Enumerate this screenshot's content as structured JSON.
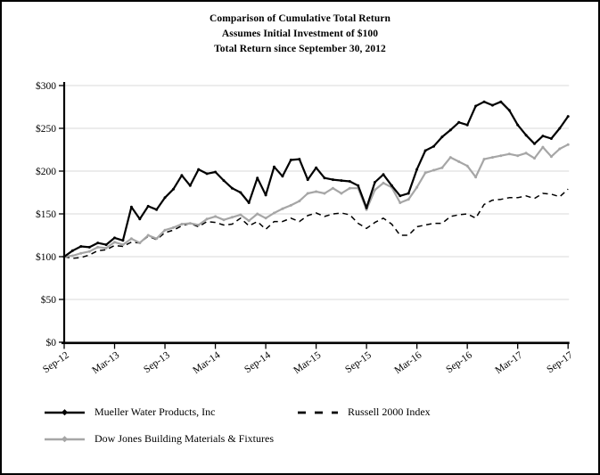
{
  "page": {
    "background": "#ffffff",
    "border_color": "#000000"
  },
  "title": {
    "line1": "Comparison of Cumulative Total Return",
    "line2": "Assumes Initial Investment of $100",
    "line3": "Total Return since September 30, 2012"
  },
  "legend": {
    "items": [
      {
        "label": "Mueller Water Products, Inc",
        "style": "solid-black-with-marker"
      },
      {
        "label": "Russell 2000 Index",
        "style": "dashed-black"
      },
      {
        "label": "Dow Jones Building Materials & Fixtures",
        "style": "solid-gray-with-marker"
      }
    ]
  },
  "colors": {
    "mueller_line": "#000000",
    "russell_line": "#000000",
    "dowjones_line": "#a6a6a6",
    "gridline": "#d9d9d9",
    "axis": "#000000"
  },
  "chart_data": {
    "type": "line",
    "title": "Comparison of Cumulative Total Return / Assumes Initial Investment of $100 / Total Return since September 30, 2012",
    "interval": "monthly",
    "start": "Sep-12",
    "end": "Sep-17",
    "points_per_series": 61,
    "x_tick_labels": [
      "Sep-12",
      "Mar-13",
      "Sep-13",
      "Mar-14",
      "Sep-14",
      "Mar-15",
      "Sep-15",
      "Mar-16",
      "Sep-16",
      "Mar-17",
      "Sep-17"
    ],
    "y_tick_labels": [
      "$0",
      "$50",
      "$100",
      "$150",
      "$200",
      "$250",
      "$300"
    ],
    "y_axis": {
      "min": 0,
      "max": 300,
      "tick_step": 50,
      "unit": "$"
    },
    "grid": "horizontal-only",
    "legend_position": "bottom",
    "series": [
      {
        "name": "Mueller Water Products, Inc",
        "color": "#000000",
        "style": "solid",
        "marker": true,
        "values": [
          100,
          107,
          112,
          111,
          116,
          114,
          122,
          119,
          158,
          144,
          159,
          155,
          169,
          179,
          195,
          183,
          202,
          197,
          199,
          189,
          180,
          175,
          163,
          192,
          172,
          205,
          194,
          213,
          214,
          190,
          204,
          192,
          190,
          189,
          188,
          183,
          157,
          187,
          196,
          183,
          171,
          174,
          202,
          224,
          229,
          240,
          248,
          257,
          254,
          276,
          281,
          277,
          281,
          271,
          254,
          242,
          232,
          241,
          238,
          250,
          264
        ]
      },
      {
        "name": "Russell 2000 Index",
        "color": "#000000",
        "style": "dashed",
        "marker": false,
        "values": [
          100,
          98,
          99,
          102,
          107,
          108,
          113,
          112,
          117,
          116,
          124,
          120,
          128,
          131,
          136,
          139,
          135,
          141,
          140,
          137,
          138,
          145,
          136,
          141,
          132,
          141,
          141,
          145,
          141,
          148,
          151,
          147,
          150,
          151,
          149,
          139,
          133,
          140,
          145,
          138,
          125,
          125,
          135,
          137,
          139,
          139,
          147,
          149,
          150,
          145,
          161,
          166,
          167,
          169,
          169,
          171,
          168,
          174,
          173,
          170,
          179
        ]
      },
      {
        "name": "Dow Jones Building Materials & Fixtures",
        "color": "#a6a6a6",
        "style": "solid",
        "marker": true,
        "values": [
          100,
          101,
          104,
          106,
          111,
          110,
          117,
          114,
          121,
          116,
          125,
          121,
          131,
          134,
          138,
          139,
          137,
          144,
          147,
          143,
          146,
          149,
          142,
          150,
          145,
          151,
          156,
          160,
          165,
          174,
          176,
          174,
          180,
          174,
          180,
          180,
          155,
          178,
          186,
          181,
          163,
          167,
          181,
          198,
          201,
          204,
          216,
          211,
          206,
          193,
          214,
          216,
          218,
          220,
          218,
          221,
          215,
          228,
          217,
          226,
          231
        ]
      }
    ]
  }
}
